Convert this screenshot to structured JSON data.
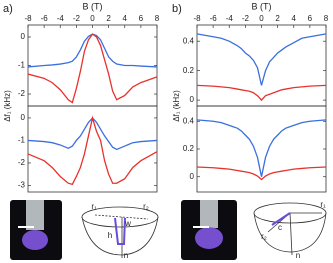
{
  "chart_data": [
    {
      "type": "line",
      "panel": "a)",
      "xlabel": "B (T)",
      "ylabel": "Δf₁ (kHz)",
      "x": [
        -8,
        -6,
        -5,
        -4,
        -3,
        -2.5,
        -2,
        -1.5,
        -1,
        -0.5,
        0,
        0.5,
        1,
        1.5,
        2,
        2.5,
        3,
        4,
        5,
        6,
        8
      ],
      "xlim": [
        -8,
        8
      ],
      "xticks": [
        -8,
        -6,
        -4,
        -2,
        0,
        2,
        4,
        6,
        8
      ],
      "ylim": [
        -2.42,
        0.42
      ],
      "yticks": [
        0,
        -1,
        -2
      ],
      "series": [
        {
          "color": "#3a6fe0",
          "values": [
            -1.05,
            -1.0,
            -0.98,
            -0.95,
            -0.9,
            -0.85,
            -0.7,
            -0.45,
            -0.15,
            0.02,
            0.1,
            0.05,
            -0.1,
            -0.4,
            -0.7,
            -0.85,
            -0.95,
            -1.0,
            -1.0,
            -1.02,
            -1.05
          ]
        },
        {
          "color": "#e8322d",
          "values": [
            -1.3,
            -1.45,
            -1.6,
            -1.85,
            -2.2,
            -2.3,
            -1.8,
            -1.2,
            -0.5,
            -0.1,
            0.1,
            0.0,
            -0.3,
            -0.8,
            -1.3,
            -1.9,
            -2.2,
            -2.05,
            -1.75,
            -1.6,
            -1.4
          ]
        }
      ]
    },
    {
      "type": "line",
      "x": [
        -8,
        -6,
        -5,
        -4,
        -3,
        -2.5,
        -2,
        -1.5,
        -1,
        -0.5,
        0,
        0.5,
        1,
        1.5,
        2,
        2.5,
        3,
        4,
        5,
        6,
        8
      ],
      "xlim": [
        -8,
        8
      ],
      "ylim": [
        -3.29,
        0.53
      ],
      "yticks": [
        0,
        -1,
        -2,
        -3
      ],
      "series": [
        {
          "color": "#3a6fe0",
          "values": [
            -1.0,
            -1.05,
            -1.1,
            -1.2,
            -1.35,
            -1.25,
            -1.0,
            -0.8,
            -0.5,
            -0.2,
            0.0,
            -0.2,
            -0.5,
            -0.8,
            -1.05,
            -1.3,
            -1.4,
            -1.25,
            -1.1,
            -1.05,
            -1.0
          ]
        },
        {
          "color": "#e8322d",
          "values": [
            -1.6,
            -1.9,
            -2.2,
            -2.6,
            -2.9,
            -2.95,
            -2.6,
            -2.2,
            -1.6,
            -0.8,
            0.0,
            -0.6,
            -1.0,
            -1.9,
            -2.5,
            -2.9,
            -2.9,
            -2.7,
            -2.2,
            -1.9,
            -1.5
          ]
        }
      ]
    },
    {
      "type": "line",
      "panel": "b)",
      "xlabel": "B (T)",
      "ylabel": "Δf₁ (kHz)",
      "x": [
        -8,
        -6,
        -5,
        -4,
        -3,
        -2.5,
        -2,
        -1.5,
        -1,
        -0.5,
        0,
        0.5,
        1,
        1.5,
        2,
        2.5,
        3,
        4,
        5,
        6,
        8
      ],
      "xlim": [
        -8,
        8
      ],
      "xticks": [
        -8,
        -6,
        -4,
        -2,
        0,
        2,
        4,
        6,
        8
      ],
      "ylim": [
        -0.04,
        0.51
      ],
      "yticks": [
        0.4,
        0.2,
        0
      ],
      "series": [
        {
          "color": "#3a6fe0",
          "values": [
            0.45,
            0.43,
            0.42,
            0.4,
            0.37,
            0.35,
            0.32,
            0.3,
            0.27,
            0.22,
            0.1,
            0.2,
            0.26,
            0.29,
            0.32,
            0.34,
            0.36,
            0.39,
            0.42,
            0.43,
            0.45
          ]
        },
        {
          "color": "#e8322d",
          "values": [
            0.1,
            0.095,
            0.09,
            0.085,
            0.075,
            0.07,
            0.065,
            0.06,
            0.05,
            0.03,
            0.0,
            0.03,
            0.04,
            0.05,
            0.06,
            0.07,
            0.075,
            0.085,
            0.09,
            0.095,
            0.1
          ]
        }
      ]
    },
    {
      "type": "line",
      "x": [
        -8,
        -6,
        -5,
        -4,
        -3,
        -2.5,
        -2,
        -1.5,
        -1,
        -0.5,
        0,
        0.5,
        1,
        1.5,
        2,
        2.5,
        3,
        4,
        5,
        6,
        8
      ],
      "xlim": [
        -8,
        8
      ],
      "ylim": [
        -0.11,
        0.51
      ],
      "yticks": [
        0.4,
        0.2,
        0
      ],
      "series": [
        {
          "color": "#3a6fe0",
          "values": [
            0.41,
            0.4,
            0.39,
            0.37,
            0.35,
            0.33,
            0.3,
            0.27,
            0.22,
            0.14,
            0.0,
            0.14,
            0.22,
            0.27,
            0.3,
            0.33,
            0.35,
            0.37,
            0.39,
            0.4,
            0.41
          ]
        },
        {
          "color": "#e8322d",
          "values": [
            0.07,
            0.065,
            0.06,
            0.055,
            0.045,
            0.04,
            0.035,
            0.03,
            0.02,
            0.005,
            -0.02,
            0.005,
            0.02,
            0.03,
            0.035,
            0.04,
            0.045,
            0.055,
            0.06,
            0.065,
            0.07
          ]
        }
      ]
    }
  ],
  "diagrams": [
    {
      "labels": [
        "r₁",
        "r₂",
        "w",
        "h",
        "n"
      ]
    },
    {
      "labels": [
        "r₁",
        "r₂",
        "c",
        "n"
      ]
    }
  ]
}
